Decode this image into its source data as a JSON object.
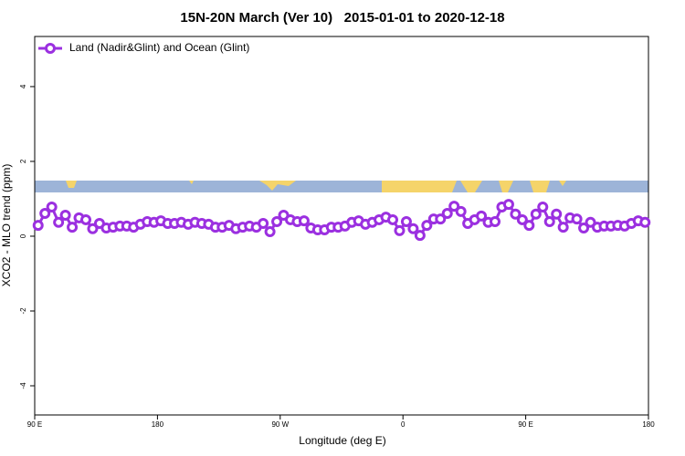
{
  "chart_data": {
    "type": "line",
    "title": "15N-20N March (Ver 10)   2015-01-01 to 2020-12-18",
    "xlabel": "Longitude (deg E)",
    "ylabel": "XCO2 - MLO trend (ppm)",
    "legend": "top-left",
    "x": [
      92.5,
      97.5,
      102.5,
      107.5,
      112.5,
      117.5,
      122.5,
      127.5,
      132.5,
      137.5,
      142.5,
      147.5,
      152.5,
      157.5,
      162.5,
      167.5,
      172.5,
      177.5,
      182.5,
      187.5,
      192.5,
      197.5,
      202.5,
      207.5,
      212.5,
      217.5,
      222.5,
      227.5,
      232.5,
      237.5,
      242.5,
      247.5,
      252.5,
      257.5,
      262.5,
      267.5,
      272.5,
      277.5,
      282.5,
      287.5,
      292.5,
      297.5,
      302.5,
      307.5,
      312.5,
      317.5,
      322.5,
      327.5,
      332.5,
      337.5,
      342.5,
      347.5,
      352.5,
      357.5,
      362.5,
      367.5,
      372.5,
      377.5,
      382.5,
      387.5,
      392.5,
      397.5,
      402.5,
      407.5,
      412.5,
      417.5,
      422.5,
      427.5,
      432.5,
      437.5,
      442.5,
      447.5,
      452.5,
      457.5,
      462.5,
      467.5,
      472.5,
      477.5,
      482.5,
      487.5,
      492.5,
      497.5,
      502.5,
      507.5,
      512.5,
      517.5,
      522.5,
      527.5,
      532.5,
      537.5
    ],
    "series": [
      {
        "name": "Land (Nadir&Glint) and Ocean (Glint)",
        "color": "#9b30e0",
        "values": [
          0.29,
          0.61,
          0.78,
          0.37,
          0.56,
          0.24,
          0.49,
          0.44,
          0.2,
          0.34,
          0.22,
          0.24,
          0.27,
          0.27,
          0.24,
          0.32,
          0.39,
          0.37,
          0.41,
          0.34,
          0.34,
          0.37,
          0.32,
          0.37,
          0.34,
          0.32,
          0.24,
          0.24,
          0.29,
          0.2,
          0.24,
          0.27,
          0.24,
          0.34,
          0.12,
          0.39,
          0.56,
          0.44,
          0.39,
          0.41,
          0.22,
          0.17,
          0.17,
          0.24,
          0.24,
          0.27,
          0.37,
          0.41,
          0.32,
          0.37,
          0.44,
          0.51,
          0.44,
          0.15,
          0.39,
          0.2,
          0.02,
          0.29,
          0.46,
          0.46,
          0.61,
          0.8,
          0.66,
          0.34,
          0.44,
          0.54,
          0.37,
          0.39,
          0.78,
          0.85,
          0.59,
          0.44,
          0.29,
          0.59,
          0.78,
          0.39,
          0.59,
          0.24,
          0.49,
          0.46,
          0.22,
          0.37,
          0.24,
          0.27,
          0.27,
          0.29,
          0.27,
          0.34,
          0.41,
          0.37
        ]
      }
    ],
    "xlim": [
      90,
      540
    ],
    "xticks": [
      {
        "value": 90,
        "label": "90 E"
      },
      180,
      {
        "value": 270,
        "label": "90 W"
      },
      {
        "value": 360,
        "label": "0"
      },
      {
        "value": 450,
        "label": "90 E"
      },
      {
        "value": 540,
        "label": "180"
      }
    ],
    "ylim": [
      -4.78,
      5.34
    ],
    "yticks": [
      -4,
      -2,
      0,
      2,
      4
    ]
  }
}
